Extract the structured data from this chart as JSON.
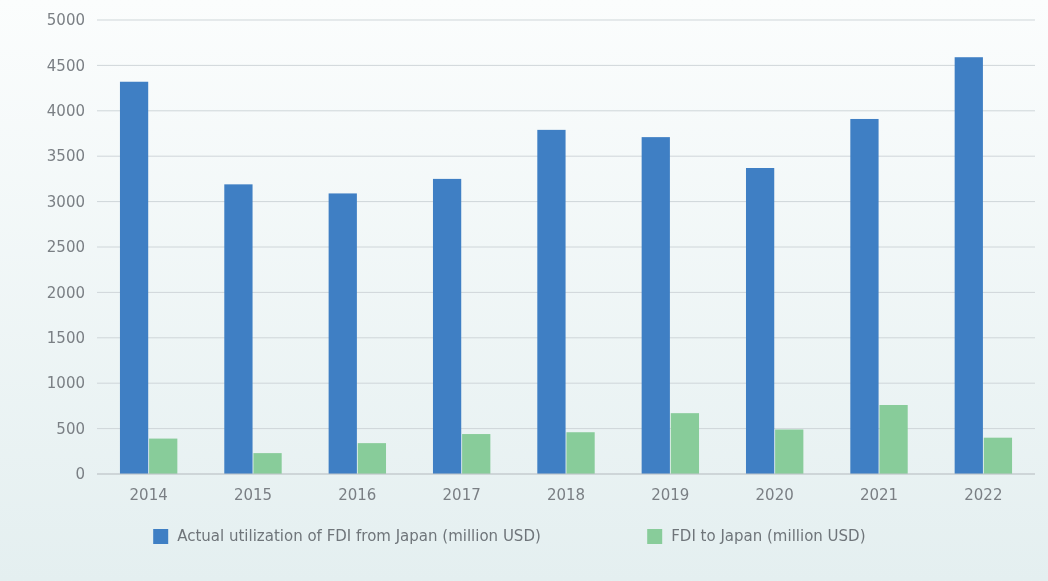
{
  "chart_data": {
    "type": "bar",
    "categories": [
      "2014",
      "2015",
      "2016",
      "2017",
      "2018",
      "2019",
      "2020",
      "2021",
      "2022"
    ],
    "series": [
      {
        "name": "Actual utilization of FDI from Japan (million USD)",
        "color": "#3f7fc4",
        "values": [
          4320,
          3190,
          3090,
          3250,
          3790,
          3710,
          3370,
          3910,
          4590
        ]
      },
      {
        "name": "FDI to Japan (million USD)",
        "color": "#88cc9a",
        "values": [
          390,
          230,
          340,
          440,
          460,
          670,
          490,
          760,
          400
        ]
      }
    ],
    "ylim": [
      0,
      5000
    ],
    "yticks": [
      0,
      500,
      1000,
      1500,
      2000,
      2500,
      3000,
      3500,
      4000,
      4500,
      5000
    ],
    "grid": "y",
    "legend": "bottom"
  }
}
